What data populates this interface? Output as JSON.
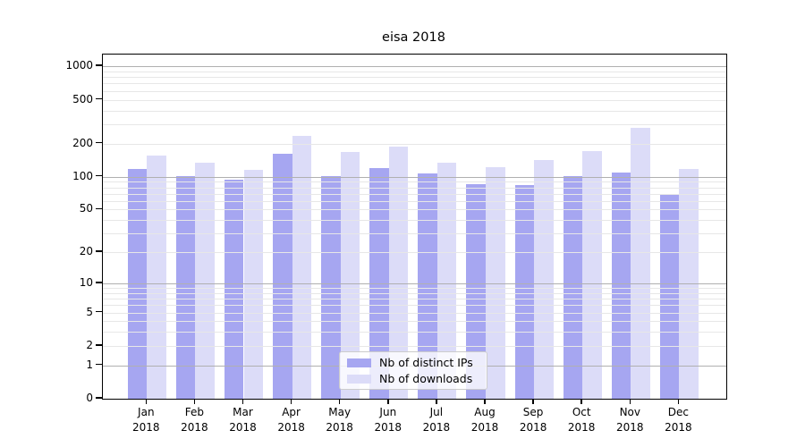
{
  "title": "eisa 2018",
  "chart_data": {
    "type": "bar",
    "title": "eisa 2018",
    "categories": [
      "Jan",
      "Feb",
      "Mar",
      "Apr",
      "May",
      "Jun",
      "Jul",
      "Aug",
      "Sep",
      "Oct",
      "Nov",
      "Dec"
    ],
    "year_label": "2018",
    "series": [
      {
        "name": "Nb of distinct IPs",
        "color": "#a6a6f1",
        "values": [
          118,
          101,
          94,
          162,
          101,
          119,
          108,
          85,
          84,
          101,
          109,
          69
        ]
      },
      {
        "name": "Nb of downloads",
        "color": "#dcdcf8",
        "values": [
          157,
          134,
          115,
          235,
          168,
          187,
          135,
          122,
          141,
          170,
          276,
          117
        ]
      }
    ],
    "yscale": "log10(value+1)",
    "yticks": [
      1000,
      500,
      200,
      100,
      50,
      20,
      10,
      5,
      2,
      1,
      0
    ],
    "ylim": [
      0,
      1268
    ],
    "grid": "horizontal major+minor",
    "legend_position": "lower center"
  },
  "colors": {
    "bar_distinct_ips": "#a6a6f1",
    "bar_downloads": "#dcdcf8",
    "grid_major": "#b0b0b0",
    "grid_minor": "#e7e7e7",
    "axis_frame": "#000000",
    "background": "#ffffff",
    "legend_border": "#cccccc"
  }
}
